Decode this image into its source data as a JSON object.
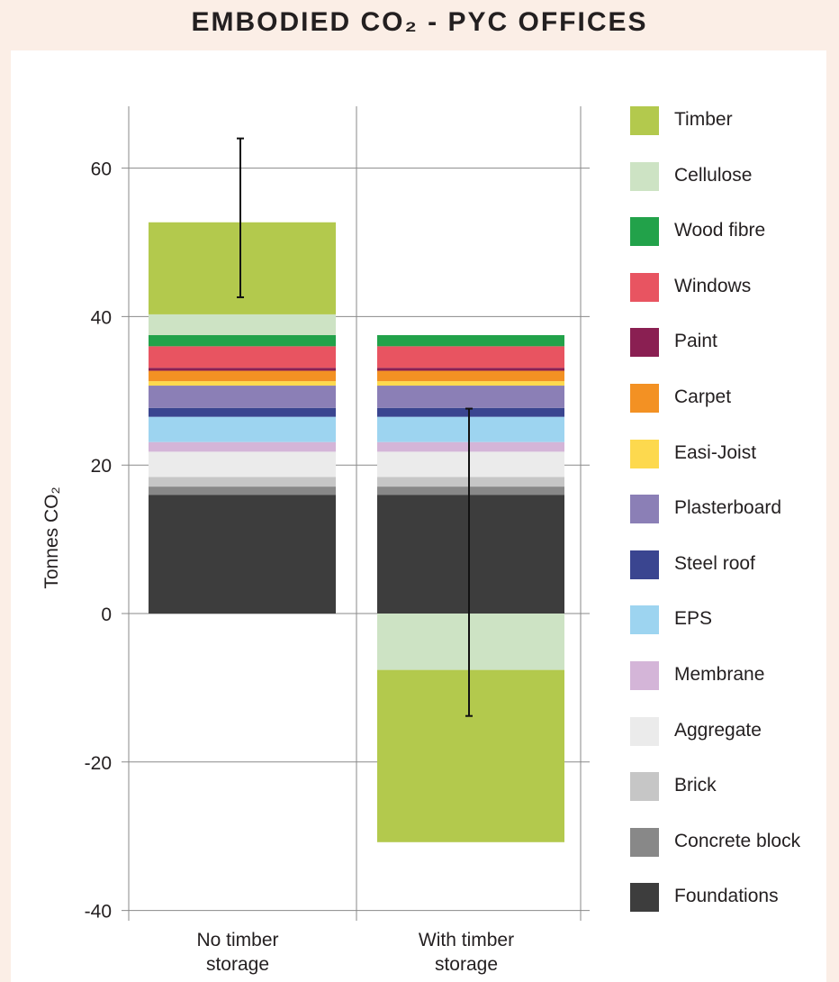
{
  "title": "EMBODIED CO₂ - PYC OFFICES",
  "chart_data": {
    "type": "bar",
    "stacked": true,
    "title": "EMBODIED CO₂ - PYC OFFICES",
    "ylabel": "Tonnes CO₂",
    "xlabel": "",
    "ylim": [
      -40,
      70
    ],
    "yticks": [
      60,
      40,
      20,
      0,
      -20,
      -40
    ],
    "categories": [
      "No timber storage",
      "With timber storage"
    ],
    "category_lines": [
      [
        "No timber",
        "storage"
      ],
      [
        "With timber",
        "storage"
      ]
    ],
    "series": [
      {
        "name": "Foundations",
        "color": "#3d3d3d",
        "values": [
          16.0,
          16.0
        ]
      },
      {
        "name": "Concrete block",
        "color": "#888888",
        "values": [
          1.1,
          1.1
        ]
      },
      {
        "name": "Brick",
        "color": "#c6c6c6",
        "values": [
          1.3,
          1.3
        ]
      },
      {
        "name": "Aggregate",
        "color": "#ebebeb",
        "values": [
          3.4,
          3.4
        ]
      },
      {
        "name": "Membrane",
        "color": "#d4b5d8",
        "values": [
          1.3,
          1.3
        ]
      },
      {
        "name": "EPS",
        "color": "#9dd4f0",
        "values": [
          3.4,
          3.4
        ]
      },
      {
        "name": "Steel roof",
        "color": "#3a4590",
        "values": [
          1.2,
          1.2
        ]
      },
      {
        "name": "Plasterboard",
        "color": "#8b7fb6",
        "values": [
          3.0,
          3.0
        ]
      },
      {
        "name": "Easi-Joist",
        "color": "#fdd94e",
        "values": [
          0.6,
          0.6
        ]
      },
      {
        "name": "Carpet",
        "color": "#f39123",
        "values": [
          1.4,
          1.4
        ]
      },
      {
        "name": "Paint",
        "color": "#8a1f52",
        "values": [
          0.4,
          0.4
        ]
      },
      {
        "name": "Windows",
        "color": "#e85461",
        "values": [
          2.9,
          2.9
        ]
      },
      {
        "name": "Wood fibre",
        "color": "#22a24a",
        "values": [
          1.5,
          1.5
        ]
      },
      {
        "name": "Cellulose",
        "color": "#cde3c4",
        "values": [
          2.8,
          -7.6
        ]
      },
      {
        "name": "Timber",
        "color": "#b3c94d",
        "values": [
          12.4,
          -23.2
        ]
      }
    ],
    "error_bars": [
      {
        "category": "No timber storage",
        "low": 42.6,
        "high": 64.0
      },
      {
        "category": "With timber storage",
        "low": -13.8,
        "high": 27.6
      }
    ],
    "legend": [
      "Timber",
      "Cellulose",
      "Wood fibre",
      "Windows",
      "Paint",
      "Carpet",
      "Easi-Joist",
      "Plasterboard",
      "Steel roof",
      "EPS",
      "Membrane",
      "Aggregate",
      "Brick",
      "Concrete block",
      "Foundations"
    ],
    "legend_position": "right",
    "grid": true
  }
}
